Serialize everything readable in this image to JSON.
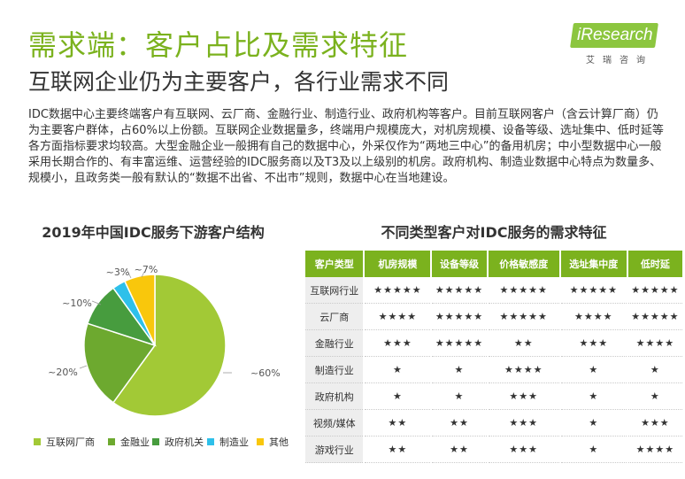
{
  "page": {
    "title": "需求端：客户占比及需求特征",
    "subtitle": "互联网企业仍为主要客户，各行业需求不同",
    "body": "IDC数据中心主要终端客户有互联网、云厂商、金融行业、制造行业、政府机构等客户。目前互联网客户（含云计算厂商）仍为主要客户群体，占60%以上份额。互联网企业数据量多，终端用户规模庞大，对机房规模、设备等级、选址集中、低时延等各方面指标要求均较高。大型金融企业一般拥有自己的数据中心，外采仅作为“两地三中心”的备用机房；中小型数据中心一般采用长期合作的、有丰富运维、运营经验的IDC服务商以及T3及以上级别的机房。政府机构、制造业数据中心特点为数量多、规模小，且政务类一般有默认的“数据不出省、不出市”规则，数据中心在当地建设。"
  },
  "logo": {
    "text": "iResearch",
    "sub": "艾瑞咨询"
  },
  "chart_data": {
    "type": "pie",
    "title": "2019年中国IDC服务下游客户结构",
    "categories": [
      "互联网厂商",
      "金融业",
      "政府机关",
      "制造业",
      "其他"
    ],
    "values": [
      60,
      20,
      10,
      3,
      7
    ],
    "data_labels": [
      "~60%",
      "~20%",
      "~10%",
      "~3%",
      "~7%"
    ],
    "colors": [
      "#a2c936",
      "#6da92f",
      "#479c3e",
      "#2ec0ea",
      "#f9c70c"
    ],
    "legend_position": "bottom"
  },
  "table": {
    "title": "不同类型客户对IDC服务的需求特征",
    "headers": [
      "客户类型",
      "机房规模",
      "设备等级",
      "价格敏感度",
      "选址集中度",
      "低时延"
    ],
    "rows": [
      [
        "互联网行业",
        "★★★★★",
        "★★★★★",
        "★★★★★",
        "★★★★★",
        "★★★★★"
      ],
      [
        "云厂商",
        "★★★★",
        "★★★★★",
        "★★★★★",
        "★★★★",
        "★★★★★"
      ],
      [
        "金融行业",
        "★★★",
        "★★★★★",
        "★★",
        "★★★",
        "★★★★"
      ],
      [
        "制造行业",
        "★",
        "★",
        "★★★★",
        "★",
        "★"
      ],
      [
        "政府机构",
        "★",
        "★",
        "★★★",
        "★",
        "★"
      ],
      [
        "视频/媒体",
        "★★",
        "★★",
        "★★★",
        "★",
        "★★★"
      ],
      [
        "游戏行业",
        "★★",
        "★★",
        "★★★",
        "★",
        "★★★★"
      ]
    ]
  }
}
